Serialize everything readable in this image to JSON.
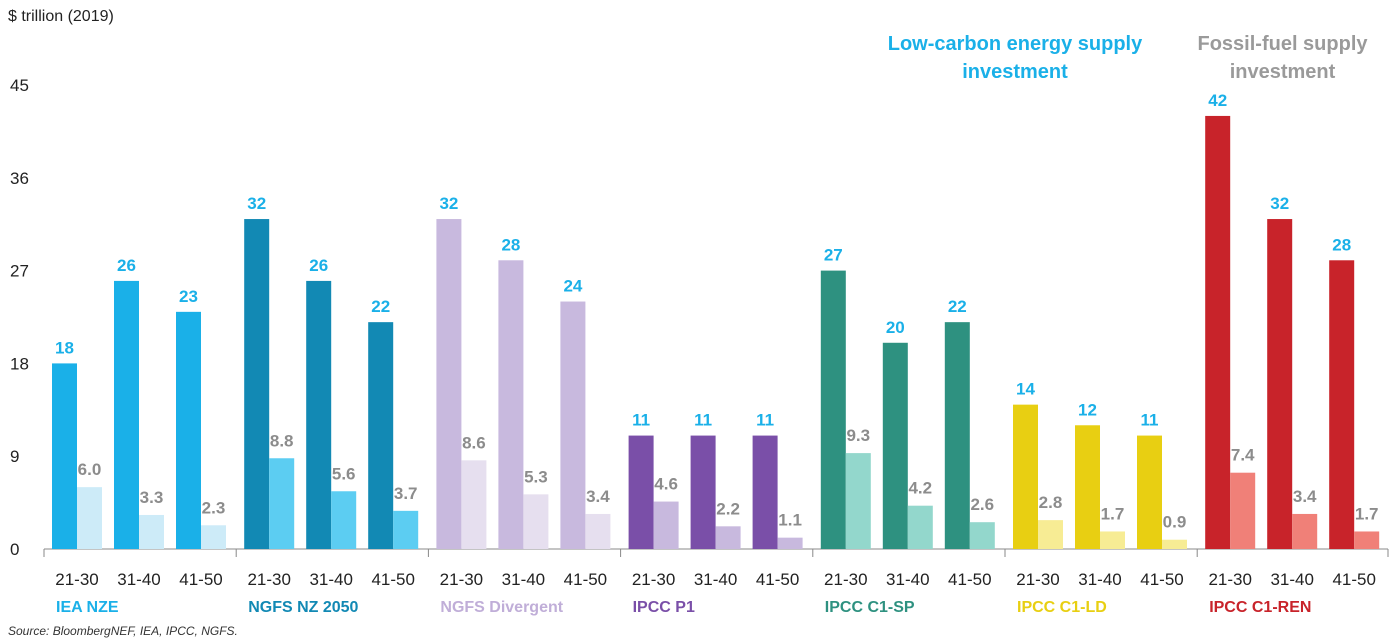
{
  "chart_data": {
    "type": "bar",
    "ylabel": "$ trillion (2019)",
    "ylim": [
      0,
      45
    ],
    "yticks": [
      0,
      9,
      18,
      27,
      36,
      45
    ],
    "grid": false,
    "legend": "none",
    "periods": [
      "21-30",
      "31-40",
      "41-50"
    ],
    "annotations": {
      "low_carbon": "Low-carbon energy supply investment",
      "fossil": "Fossil-fuel supply investment"
    },
    "annotation_colors": {
      "low_carbon": "#1ab0e8",
      "fossil": "#9a9a9a"
    },
    "value_label_colors": {
      "low_carbon": "#1ab0e8",
      "fossil": "#8c8c8c"
    },
    "groups": [
      {
        "name": "IEA NZE",
        "name_color": "#1ab0e8",
        "low_color": "#1ab0e8",
        "fossil_color": "#cdebf8",
        "low_carbon": [
          18,
          26,
          23
        ],
        "fossil": [
          6.0,
          3.3,
          2.3
        ],
        "low_labels": [
          "18",
          "26",
          "23"
        ],
        "fossil_labels": [
          "6.0",
          "3.3",
          "2.3"
        ]
      },
      {
        "name": "NGFS NZ 2050",
        "name_color": "#1289b4",
        "low_color": "#1289b4",
        "fossil_color": "#5ccdf2",
        "low_carbon": [
          32,
          26,
          22
        ],
        "fossil": [
          8.8,
          5.6,
          3.7
        ],
        "low_labels": [
          "32",
          "26",
          "22"
        ],
        "fossil_labels": [
          "8.8",
          "5.6",
          "3.7"
        ]
      },
      {
        "name": "NGFS Divergent",
        "name_color": "#c0aed8",
        "low_color": "#c8b9de",
        "fossil_color": "#e6dfef",
        "low_carbon": [
          32,
          28,
          24
        ],
        "fossil": [
          8.6,
          5.3,
          3.4
        ],
        "low_labels": [
          "32",
          "28",
          "24"
        ],
        "fossil_labels": [
          "8.6",
          "5.3",
          "3.4"
        ]
      },
      {
        "name": "IPCC P1",
        "name_color": "#7a4fa8",
        "low_color": "#7a4fa8",
        "fossil_color": "#c8b9de",
        "low_carbon": [
          11,
          11,
          11
        ],
        "fossil": [
          4.6,
          2.2,
          1.1
        ],
        "low_labels": [
          "11",
          "11",
          "11"
        ],
        "fossil_labels": [
          "4.6",
          "2.2",
          "1.1"
        ]
      },
      {
        "name": "IPCC C1-SP",
        "name_color": "#2e9180",
        "low_color": "#2e9180",
        "fossil_color": "#93d7cc",
        "low_carbon": [
          27,
          20,
          22
        ],
        "fossil": [
          9.3,
          4.2,
          2.6
        ],
        "low_labels": [
          "27",
          "20",
          "22"
        ],
        "fossil_labels": [
          "9.3",
          "4.2",
          "2.6"
        ]
      },
      {
        "name": "IPCC C1-LD",
        "name_color": "#e8cf12",
        "low_color": "#e8cf12",
        "fossil_color": "#f7ec94",
        "low_carbon": [
          14,
          12,
          11
        ],
        "fossil": [
          2.8,
          1.7,
          0.9
        ],
        "low_labels": [
          "14",
          "12",
          "11"
        ],
        "fossil_labels": [
          "2.8",
          "1.7",
          "0.9"
        ]
      },
      {
        "name": "IPCC C1-REN",
        "name_color": "#c8232a",
        "low_color": "#c8232a",
        "fossil_color": "#f08078",
        "low_carbon": [
          42,
          32,
          28
        ],
        "fossil": [
          7.4,
          3.4,
          1.7
        ],
        "low_labels": [
          "42",
          "32",
          "28"
        ],
        "fossil_labels": [
          "7.4",
          "3.4",
          "1.7"
        ]
      }
    ]
  },
  "source": "Source: BloombergNEF, IEA, IPCC, NGFS."
}
